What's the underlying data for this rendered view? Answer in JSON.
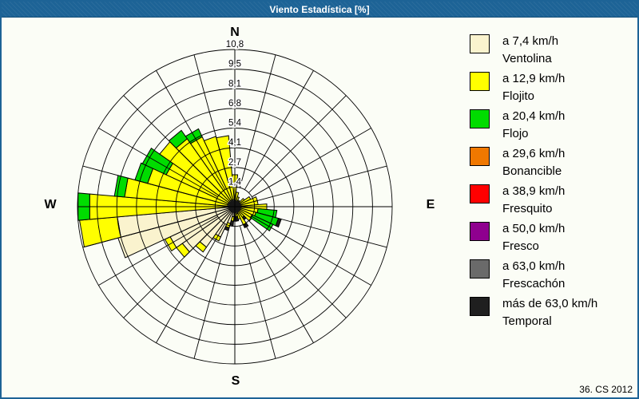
{
  "window": {
    "title": "Viento Estadística [%]",
    "footer": "36. CS 2012"
  },
  "compass": {
    "n": "N",
    "e": "E",
    "s": "S",
    "w": "W"
  },
  "colors": {
    "title_bar": "#1d6396",
    "border": "#1d6396",
    "background": "#fbfdf6",
    "grid": "#000000",
    "ventolina": "#faf3ce",
    "flojito": "#ffff00",
    "flojo": "#00dc00",
    "bonancible": "#f07800",
    "fresquito": "#ff0000",
    "fresco": "#8f008f",
    "frescachon": "#6a6a6a",
    "temporal": "#1f1f1f"
  },
  "legend": {
    "items": [
      {
        "speed": "a 7,4 km/h",
        "name": "Ventolina",
        "color": "#faf3ce"
      },
      {
        "speed": "a 12,9 km/h",
        "name": "Flojito",
        "color": "#ffff00"
      },
      {
        "speed": "a 20,4 km/h",
        "name": "Flojo",
        "color": "#00dc00"
      },
      {
        "speed": "a 29,6 km/h",
        "name": "Bonancible",
        "color": "#f07800"
      },
      {
        "speed": "a 38,9 km/h",
        "name": "Fresquito",
        "color": "#ff0000"
      },
      {
        "speed": "a 50,0 km/h",
        "name": "Fresco",
        "color": "#8f008f"
      },
      {
        "speed": "a 63,0 km/h",
        "name": "Frescachón",
        "color": "#6a6a6a"
      },
      {
        "speed": "más de 63,0 km/h",
        "name": "Temporal",
        "color": "#1f1f1f"
      }
    ]
  },
  "chart_data": {
    "type": "wind-rose-stacked-polar-bar",
    "units": "%",
    "title": "Viento Estadística [%]",
    "sector_width_deg": 10,
    "grid_spokes_deg": 15,
    "rings": 8,
    "rmax": 10.8,
    "ring_values": [
      1.4,
      2.7,
      4.1,
      5.4,
      6.8,
      8.1,
      9.5,
      10.8
    ],
    "ring_labels": [
      "1,4",
      "2,7",
      "4,1",
      "5,4",
      "6,8",
      "8,1",
      "9,5",
      "10,8"
    ],
    "directions_deg": [
      0,
      10,
      20,
      30,
      40,
      50,
      60,
      70,
      80,
      90,
      100,
      110,
      120,
      130,
      140,
      150,
      160,
      170,
      180,
      190,
      200,
      210,
      220,
      230,
      240,
      250,
      260,
      270,
      280,
      290,
      300,
      310,
      320,
      330,
      340,
      350
    ],
    "series": [
      {
        "name": "Ventolina",
        "values": [
          0.3,
          0.3,
          0.2,
          0.2,
          0.2,
          0.2,
          0.3,
          0.3,
          0.3,
          0.4,
          0.4,
          0.4,
          0.3,
          0.3,
          0.3,
          0.4,
          0.5,
          0.4,
          0.4,
          0.7,
          1.2,
          2.3,
          3.4,
          4.4,
          4.9,
          8.3,
          8.1,
          0.5,
          0.5,
          0.5,
          0.5,
          0.5,
          0.5,
          0.5,
          0.5,
          0.5
        ]
      },
      {
        "name": "Flojito",
        "values": [
          1.9,
          0.7,
          0.5,
          0.3,
          0.3,
          0.6,
          0.9,
          1.3,
          1.3,
          1.8,
          1.2,
          1.1,
          1.0,
          1.1,
          0.6,
          1.0,
          0.4,
          0.3,
          0.2,
          0.3,
          0.3,
          0.3,
          0.4,
          0.5,
          0.4,
          0.0,
          2.6,
          9.5,
          7.1,
          5.7,
          4.7,
          5.8,
          5.2,
          4.8,
          4.5,
          4.4
        ]
      },
      {
        "name": "Flojo",
        "values": [
          0,
          0,
          0,
          0,
          0,
          0,
          0,
          0,
          0,
          0,
          1.3,
          1.6,
          1.6,
          0,
          0,
          0,
          0,
          0,
          0,
          0,
          0,
          0,
          0,
          0,
          0,
          0,
          0,
          0.8,
          0.7,
          0.9,
          1.8,
          0,
          0.7,
          0.6,
          0,
          0
        ]
      },
      {
        "name": "Temporal",
        "values": [
          0,
          0,
          0,
          0,
          0,
          0,
          0,
          0,
          0,
          0,
          0,
          0.2,
          0,
          0,
          0.2,
          0.2,
          0,
          0.3,
          0.4,
          0.3,
          0.2,
          0,
          0,
          0,
          0,
          0,
          0,
          0,
          0,
          0,
          0,
          0,
          0,
          0,
          0,
          0
        ]
      }
    ]
  }
}
